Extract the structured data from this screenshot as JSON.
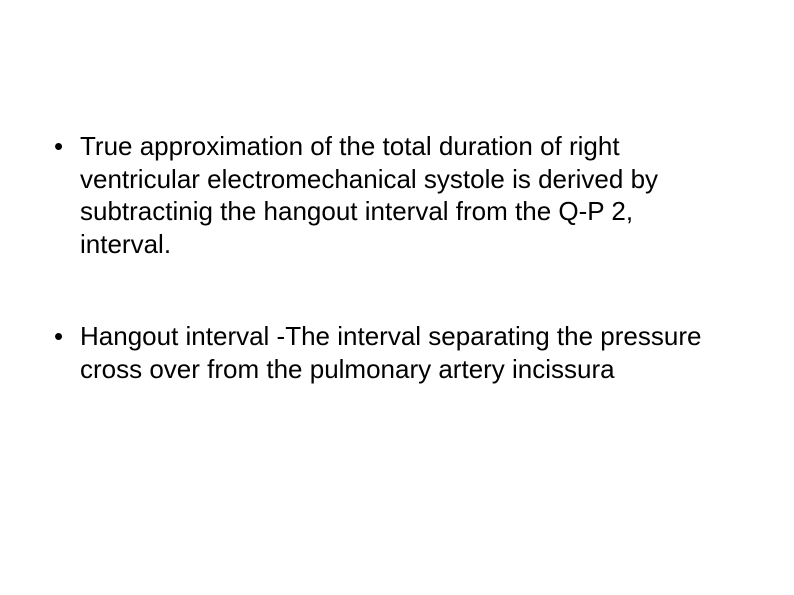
{
  "slide": {
    "background_color": "#ffffff",
    "text_color": "#000000",
    "font_family": "Arial",
    "font_size_pt": 20,
    "bullets": [
      "True approximation of the total duration of right ventricular electromechanical systole is derived by subtractinig the hangout interval from the Q-P 2, interval.",
      "Hangout interval -The interval separating the pressure cross over from the pulmonary artery incissura"
    ]
  }
}
